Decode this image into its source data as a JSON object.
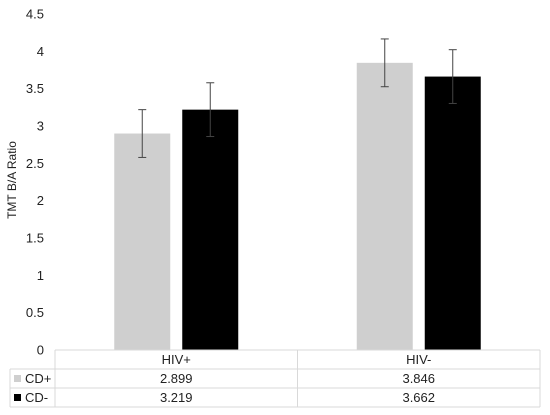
{
  "chart_data": {
    "type": "bar",
    "categories": [
      "HIV+",
      "HIV-"
    ],
    "series": [
      {
        "name": "CD+",
        "values": [
          2.899,
          3.846
        ],
        "error": [
          0.32,
          0.32
        ],
        "color": "#cfcfcf"
      },
      {
        "name": "CD-",
        "values": [
          3.219,
          3.662
        ],
        "error": [
          0.36,
          0.36
        ],
        "color": "#000000"
      }
    ],
    "ylabel": "TMT B/A Ratio",
    "ylim": [
      0,
      4.5
    ],
    "yticks": [
      "0",
      "0.5",
      "1",
      "1.5",
      "2",
      "2.5",
      "3",
      "3.5",
      "4",
      "4.5"
    ],
    "grid": false,
    "data_table": {
      "rows": [
        {
          "series": "CD+",
          "cells": [
            "2.899",
            "3.846"
          ]
        },
        {
          "series": "CD-",
          "cells": [
            "3.219",
            "3.662"
          ]
        }
      ]
    }
  }
}
